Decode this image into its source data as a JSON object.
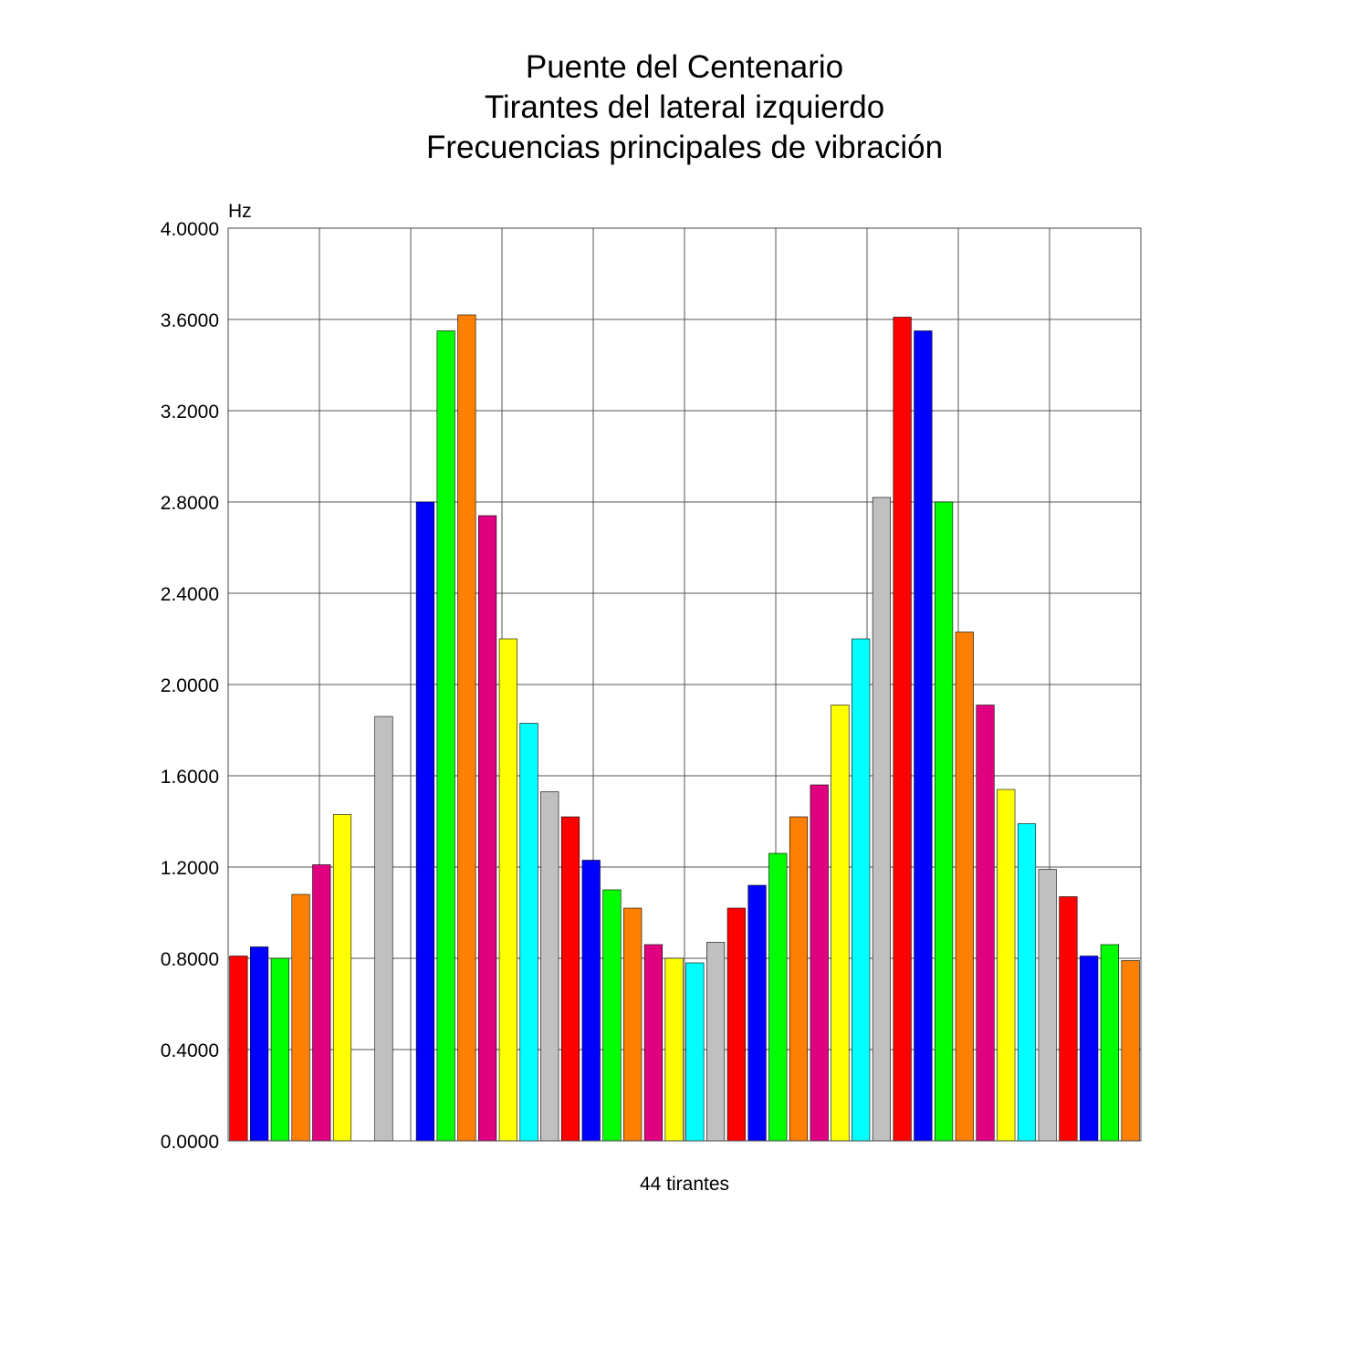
{
  "chart_data": {
    "type": "bar",
    "title_lines": [
      "Puente del Centenario",
      "Tirantes del lateral izquierdo",
      "Frecuencias principales de vibración"
    ],
    "ylabel": "Hz",
    "xlabel": "44 tirantes",
    "ylim": [
      0,
      4
    ],
    "yticks": [
      "0.0000",
      "0.4000",
      "0.8000",
      "1.2000",
      "1.6000",
      "2.0000",
      "2.4000",
      "2.8000",
      "3.2000",
      "3.6000",
      "4.0000"
    ],
    "grid": true,
    "x_grid_divisions": 10,
    "values": [
      0.81,
      0.85,
      0.8,
      1.08,
      1.21,
      1.43,
      0,
      1.86,
      0,
      2.8,
      3.55,
      3.62,
      2.74,
      2.2,
      1.83,
      1.53,
      1.42,
      1.23,
      1.1,
      1.02,
      0.86,
      0.8,
      0.78,
      0.87,
      1.02,
      1.12,
      1.26,
      1.42,
      1.56,
      1.91,
      2.2,
      2.82,
      3.61,
      3.55,
      2.8,
      2.23,
      1.91,
      1.54,
      1.39,
      1.19,
      1.07,
      0.81,
      0.86,
      0.79
    ],
    "colors": [
      "#ff0000",
      "#0000ff",
      "#00ff00",
      "#ff8000",
      "#e0007f",
      "#ffff00",
      "#00ffff",
      "#c0c0c0",
      "#ff0000",
      "#0000ff",
      "#00ff00",
      "#ff8000",
      "#e0007f",
      "#ffff00",
      "#00ffff",
      "#c0c0c0",
      "#ff0000",
      "#0000ff",
      "#00ff00",
      "#ff8000",
      "#e0007f",
      "#ffff00",
      "#00ffff",
      "#c0c0c0",
      "#ff0000",
      "#0000ff",
      "#00ff00",
      "#ff8000",
      "#e0007f",
      "#ffff00",
      "#00ffff",
      "#c0c0c0",
      "#ff0000",
      "#0000ff",
      "#00ff00",
      "#ff8000",
      "#e0007f",
      "#ffff00",
      "#00ffff",
      "#c0c0c0",
      "#ff0000",
      "#0000ff",
      "#00ff00",
      "#ff8000"
    ]
  }
}
